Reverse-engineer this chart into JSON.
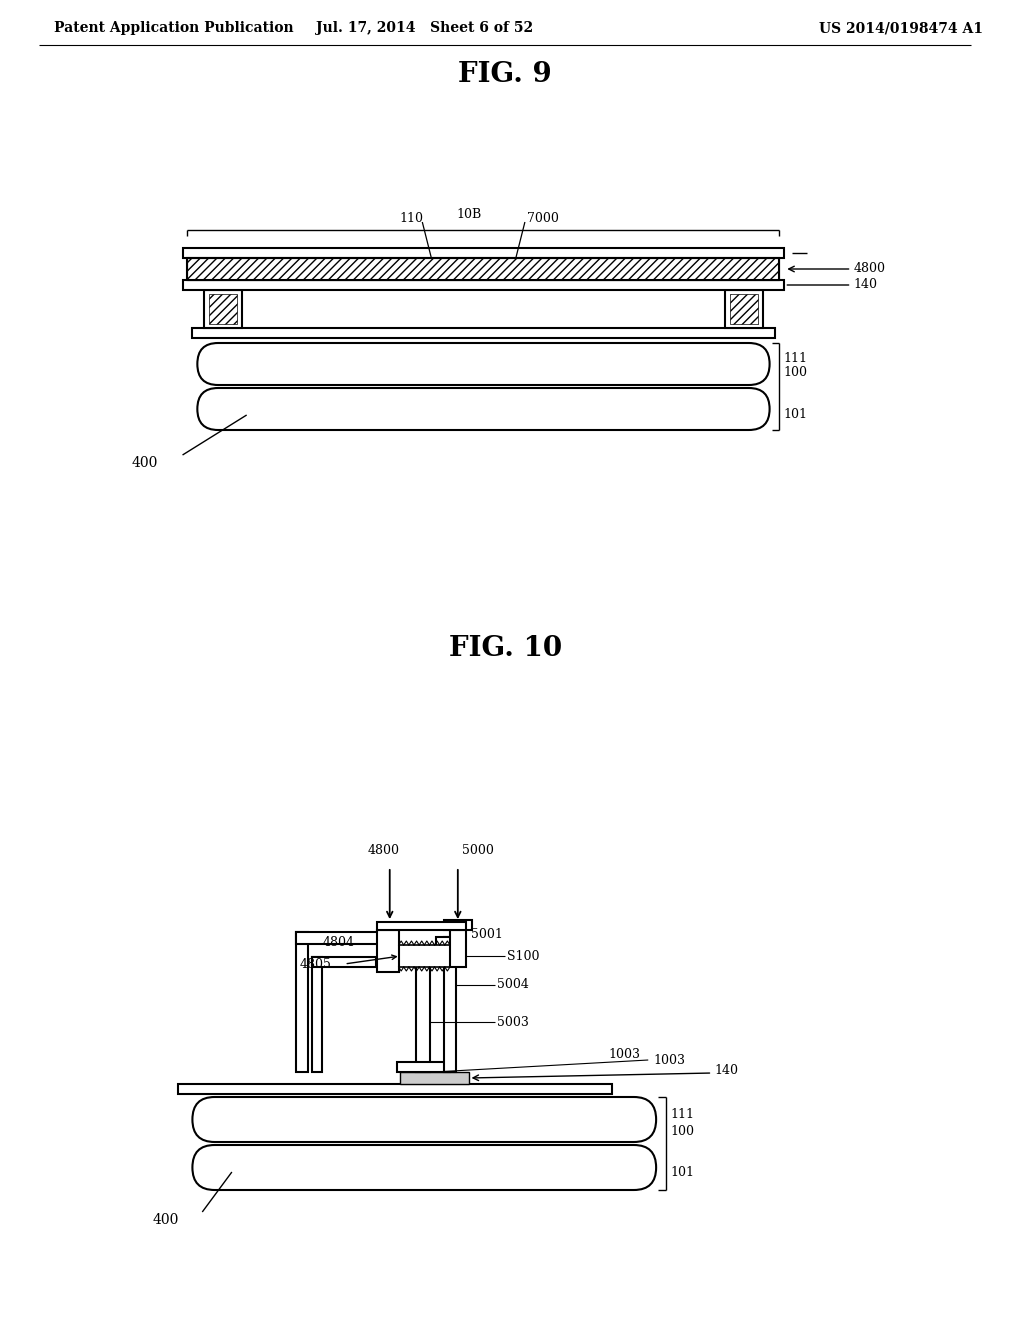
{
  "background_color": "#ffffff",
  "header_left": "Patent Application Publication",
  "header_center": "Jul. 17, 2014   Sheet 6 of 52",
  "header_right": "US 2014/0198474 A1",
  "fig9_title": "FIG. 9",
  "fig10_title": "FIG. 10",
  "line_color": "#000000",
  "font_size_header": 10,
  "font_size_title": 20,
  "font_size_label": 9
}
